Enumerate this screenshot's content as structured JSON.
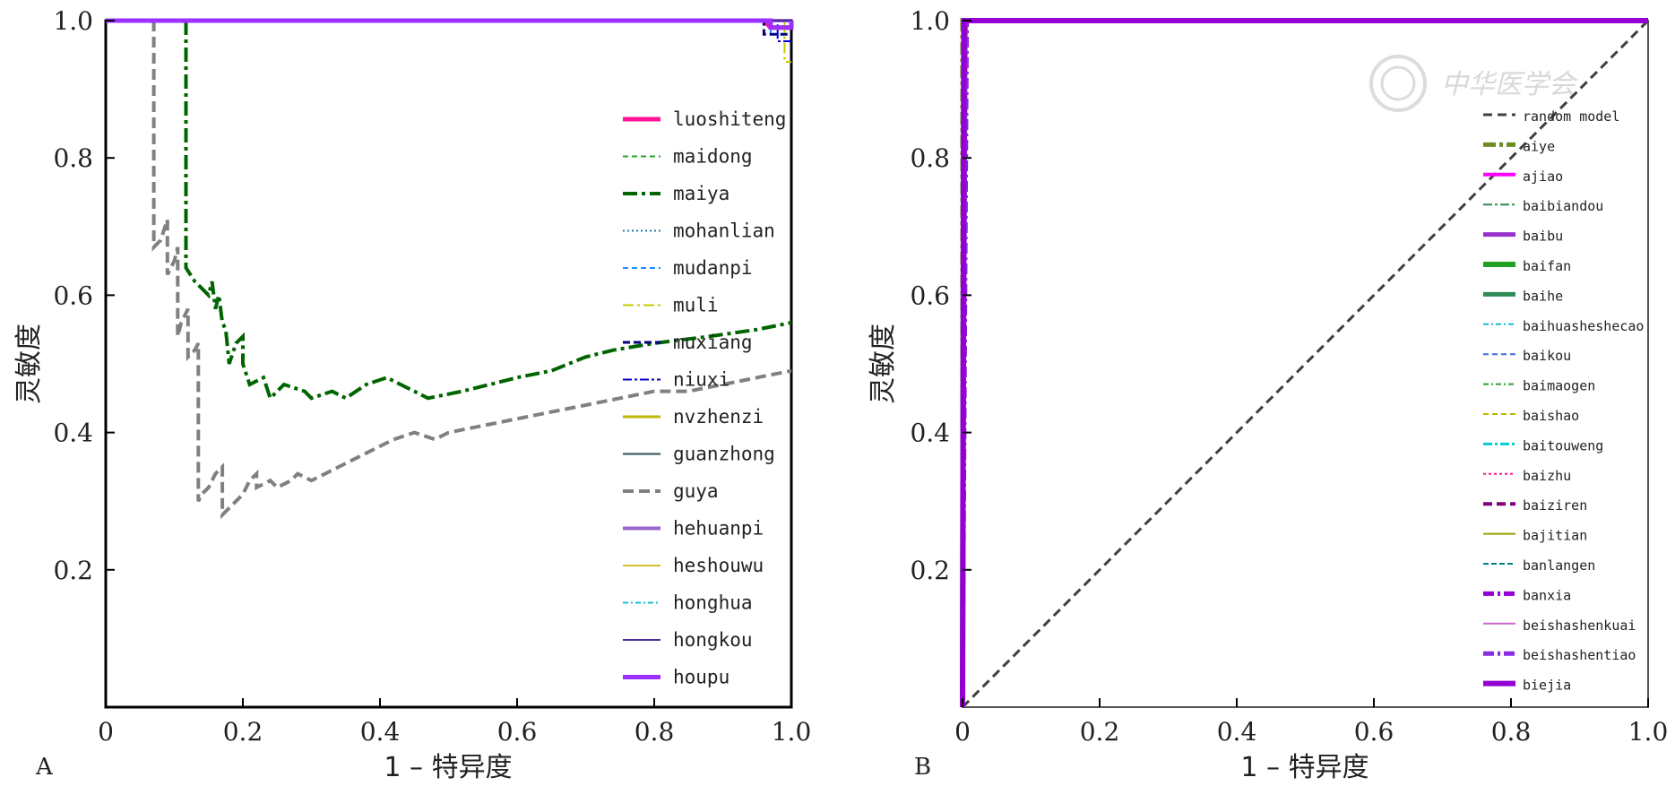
{
  "chart_data": [
    {
      "type": "line",
      "panel_label": "A",
      "xlabel": "1 – 特异度",
      "ylabel": "灵敏度",
      "xlim": [
        0,
        1
      ],
      "ylim": [
        0,
        1
      ],
      "x_ticks": [
        "0",
        "0.2",
        "0.4",
        "0.6",
        "0.8",
        "1.0"
      ],
      "y_ticks": [
        "0.2",
        "0.4",
        "0.6",
        "0.8",
        "1.0"
      ],
      "legend_position": "right",
      "series": [
        {
          "name": "luoshiteng",
          "color": "#ff1493",
          "dash": "",
          "width": 5,
          "points": [
            [
              0,
              1
            ],
            [
              0.96,
              1
            ],
            [
              0.97,
              0.99
            ],
            [
              1,
              0.99
            ],
            [
              1,
              1
            ]
          ]
        },
        {
          "name": "maidong",
          "color": "#2ca02c",
          "dash": "6 4",
          "width": 2,
          "points": [
            [
              0,
              1
            ],
            [
              1,
              1
            ]
          ]
        },
        {
          "name": "maiya",
          "color": "#006400",
          "dash": "16 5 4 5",
          "width": 4,
          "points": [
            [
              0.117,
              1
            ],
            [
              0.117,
              0.64
            ],
            [
              0.13,
              0.62
            ],
            [
              0.14,
              0.61
            ],
            [
              0.15,
              0.6
            ],
            [
              0.155,
              0.62
            ],
            [
              0.16,
              0.58
            ],
            [
              0.165,
              0.6
            ],
            [
              0.17,
              0.56
            ],
            [
              0.175,
              0.55
            ],
            [
              0.18,
              0.5
            ],
            [
              0.19,
              0.53
            ],
            [
              0.2,
              0.54
            ],
            [
              0.2,
              0.5
            ],
            [
              0.21,
              0.47
            ],
            [
              0.23,
              0.48
            ],
            [
              0.24,
              0.45
            ],
            [
              0.26,
              0.47
            ],
            [
              0.29,
              0.46
            ],
            [
              0.3,
              0.45
            ],
            [
              0.33,
              0.46
            ],
            [
              0.35,
              0.45
            ],
            [
              0.38,
              0.47
            ],
            [
              0.41,
              0.48
            ],
            [
              0.43,
              0.47
            ],
            [
              0.45,
              0.46
            ],
            [
              0.47,
              0.45
            ],
            [
              0.52,
              0.46
            ],
            [
              0.56,
              0.47
            ],
            [
              0.6,
              0.48
            ],
            [
              0.65,
              0.49
            ],
            [
              0.7,
              0.51
            ],
            [
              0.74,
              0.52
            ],
            [
              0.8,
              0.53
            ],
            [
              0.88,
              0.54
            ],
            [
              0.95,
              0.55
            ],
            [
              1,
              0.56
            ]
          ]
        },
        {
          "name": "mohanlian",
          "color": "#1f77b4",
          "dash": "2 3",
          "width": 2,
          "points": [
            [
              0,
              1
            ],
            [
              1,
              1
            ]
          ]
        },
        {
          "name": "mudanpi",
          "color": "#1e90ff",
          "dash": "6 4",
          "width": 2,
          "points": [
            [
              0,
              1
            ],
            [
              0.97,
              1
            ],
            [
              0.97,
              0.98
            ],
            [
              1,
              0.98
            ]
          ]
        },
        {
          "name": "muli",
          "color": "#c8c800",
          "dash": "12 4 3 4",
          "width": 2,
          "points": [
            [
              0,
              1
            ],
            [
              0.99,
              1
            ],
            [
              0.99,
              0.94
            ],
            [
              1,
              0.94
            ]
          ]
        },
        {
          "name": "muxiang",
          "color": "#000080",
          "dash": "8 4",
          "width": 3,
          "points": [
            [
              0,
              1
            ],
            [
              0.96,
              1
            ],
            [
              0.96,
              0.98
            ],
            [
              1,
              0.98
            ]
          ]
        },
        {
          "name": "niuxi",
          "color": "#0000cd",
          "dash": "10 3 3 3",
          "width": 2,
          "points": [
            [
              0,
              1
            ],
            [
              0.98,
              1
            ],
            [
              0.98,
              0.97
            ],
            [
              1,
              0.97
            ]
          ]
        },
        {
          "name": "nvzhenzi",
          "color": "#bdb700",
          "dash": "",
          "width": 3,
          "points": [
            [
              0,
              1
            ],
            [
              1,
              1
            ]
          ]
        },
        {
          "name": "guanzhong",
          "color": "#2f4f4f",
          "dash": "",
          "width": 2,
          "points": [
            [
              0,
              1
            ],
            [
              1,
              1
            ]
          ]
        },
        {
          "name": "guya",
          "color": "#808080",
          "dash": "12 6",
          "width": 4,
          "points": [
            [
              0.07,
              1
            ],
            [
              0.07,
              0.67
            ],
            [
              0.08,
              0.68
            ],
            [
              0.09,
              0.71
            ],
            [
              0.09,
              0.63
            ],
            [
              0.1,
              0.65
            ],
            [
              0.105,
              0.67
            ],
            [
              0.105,
              0.54
            ],
            [
              0.11,
              0.56
            ],
            [
              0.12,
              0.58
            ],
            [
              0.12,
              0.51
            ],
            [
              0.13,
              0.52
            ],
            [
              0.135,
              0.53
            ],
            [
              0.135,
              0.3
            ],
            [
              0.14,
              0.31
            ],
            [
              0.15,
              0.32
            ],
            [
              0.16,
              0.34
            ],
            [
              0.17,
              0.35
            ],
            [
              0.17,
              0.28
            ],
            [
              0.18,
              0.29
            ],
            [
              0.19,
              0.3
            ],
            [
              0.2,
              0.31
            ],
            [
              0.21,
              0.33
            ],
            [
              0.22,
              0.34
            ],
            [
              0.22,
              0.32
            ],
            [
              0.24,
              0.33
            ],
            [
              0.25,
              0.32
            ],
            [
              0.27,
              0.33
            ],
            [
              0.28,
              0.34
            ],
            [
              0.3,
              0.33
            ],
            [
              0.32,
              0.34
            ],
            [
              0.34,
              0.35
            ],
            [
              0.36,
              0.36
            ],
            [
              0.38,
              0.37
            ],
            [
              0.4,
              0.38
            ],
            [
              0.42,
              0.39
            ],
            [
              0.45,
              0.4
            ],
            [
              0.48,
              0.39
            ],
            [
              0.5,
              0.4
            ],
            [
              0.55,
              0.41
            ],
            [
              0.6,
              0.42
            ],
            [
              0.65,
              0.43
            ],
            [
              0.7,
              0.44
            ],
            [
              0.75,
              0.45
            ],
            [
              0.8,
              0.46
            ],
            [
              0.85,
              0.46
            ],
            [
              0.9,
              0.47
            ],
            [
              0.95,
              0.48
            ],
            [
              1,
              0.49
            ]
          ]
        },
        {
          "name": "hehuanpi",
          "color": "#9966cc",
          "dash": "",
          "width": 4,
          "points": [
            [
              0,
              1
            ],
            [
              1,
              1
            ]
          ]
        },
        {
          "name": "heshouwu",
          "color": "#d4c030",
          "dash": "",
          "width": 2,
          "points": [
            [
              0,
              1
            ],
            [
              1,
              1
            ]
          ]
        },
        {
          "name": "honghua",
          "color": "#17becf",
          "dash": "6 3 2 3",
          "width": 2,
          "points": [
            [
              0,
              1
            ],
            [
              1,
              1
            ]
          ]
        },
        {
          "name": "hongkou",
          "color": "#4b2c9a",
          "dash": "",
          "width": 2,
          "points": [
            [
              0,
              1
            ],
            [
              1,
              1
            ]
          ]
        },
        {
          "name": "houpu",
          "color": "#9b30ff",
          "dash": "",
          "width": 5,
          "points": [
            [
              0,
              1
            ],
            [
              0.97,
              1
            ],
            [
              0.97,
              0.99
            ],
            [
              1,
              0.99
            ],
            [
              1,
              1
            ]
          ]
        }
      ]
    },
    {
      "type": "line",
      "panel_label": "B",
      "xlabel": "1 – 特异度",
      "ylabel": "灵敏度",
      "xlim": [
        0,
        1
      ],
      "ylim": [
        0,
        1
      ],
      "x_ticks": [
        "0",
        "0.2",
        "0.4",
        "0.6",
        "0.8",
        "1.0"
      ],
      "y_ticks": [
        "0.2",
        "0.4",
        "0.6",
        "0.8",
        "1.0"
      ],
      "legend_position": "right",
      "series": [
        {
          "name": "random model",
          "color": "#404040",
          "dash": "10 6",
          "width": 3,
          "points": [
            [
              0,
              0
            ],
            [
              1,
              1
            ]
          ]
        },
        {
          "name": "aiye",
          "color": "#6b8e23",
          "dash": "14 4 4 4",
          "width": 5,
          "points": [
            [
              0,
              0
            ],
            [
              0,
              1
            ],
            [
              1,
              1
            ]
          ]
        },
        {
          "name": "ajiao",
          "color": "#ff00ff",
          "dash": "",
          "width": 4,
          "points": [
            [
              0,
              0
            ],
            [
              0.005,
              1
            ],
            [
              1,
              1
            ]
          ]
        },
        {
          "name": "baibiandou",
          "color": "#2e8b57",
          "dash": "10 3 3 3",
          "width": 2,
          "points": [
            [
              0,
              0
            ],
            [
              0.003,
              1
            ],
            [
              1,
              1
            ]
          ]
        },
        {
          "name": "baibu",
          "color": "#9932cc",
          "dash": "",
          "width": 5,
          "points": [
            [
              0,
              0
            ],
            [
              0.004,
              1
            ],
            [
              1,
              1
            ]
          ]
        },
        {
          "name": "baifan",
          "color": "#22a022",
          "dash": "",
          "width": 6,
          "points": [
            [
              0,
              0
            ],
            [
              0.002,
              1
            ],
            [
              1,
              1
            ]
          ]
        },
        {
          "name": "baihe",
          "color": "#2e8b57",
          "dash": "",
          "width": 5,
          "points": [
            [
              0,
              0
            ],
            [
              0.003,
              1
            ],
            [
              1,
              1
            ]
          ]
        },
        {
          "name": "baihuasheshecao",
          "color": "#17becf",
          "dash": "6 3 2 3",
          "width": 1,
          "points": [
            [
              0,
              0
            ],
            [
              0.002,
              1
            ],
            [
              1,
              1
            ]
          ]
        },
        {
          "name": "baikou",
          "color": "#4169e1",
          "dash": "6 4",
          "width": 2,
          "points": [
            [
              0,
              0
            ],
            [
              0.003,
              1
            ],
            [
              1,
              1
            ]
          ]
        },
        {
          "name": "baimaogen",
          "color": "#2ca02c",
          "dash": "6 3 2 3",
          "width": 1,
          "points": [
            [
              0,
              0
            ],
            [
              0.004,
              1
            ],
            [
              1,
              1
            ]
          ]
        },
        {
          "name": "baishao",
          "color": "#bdb700",
          "dash": "6 4",
          "width": 2,
          "points": [
            [
              0,
              0
            ],
            [
              0.004,
              1
            ],
            [
              1,
              1
            ]
          ]
        },
        {
          "name": "baitouweng",
          "color": "#00ced1",
          "dash": "10 3 3 3",
          "width": 3,
          "points": [
            [
              0,
              0
            ],
            [
              0.003,
              1
            ],
            [
              1,
              1
            ]
          ]
        },
        {
          "name": "baizhu",
          "color": "#ff1493",
          "dash": "3 3",
          "width": 1,
          "points": [
            [
              0,
              0
            ],
            [
              0.005,
              1
            ],
            [
              1,
              1
            ]
          ]
        },
        {
          "name": "baiziren",
          "color": "#800080",
          "dash": "10 5",
          "width": 4,
          "points": [
            [
              0,
              0
            ],
            [
              0.004,
              1
            ],
            [
              1,
              1
            ]
          ]
        },
        {
          "name": "bajitian",
          "color": "#a0a000",
          "dash": "",
          "width": 2,
          "points": [
            [
              0,
              0
            ],
            [
              0.002,
              1
            ],
            [
              1,
              1
            ]
          ]
        },
        {
          "name": "banlangen",
          "color": "#008080",
          "dash": "6 3",
          "width": 2,
          "points": [
            [
              0,
              0
            ],
            [
              0.003,
              1
            ],
            [
              1,
              1
            ]
          ]
        },
        {
          "name": "banxia",
          "color": "#9400d3",
          "dash": "12 4 3 4",
          "width": 5,
          "points": [
            [
              0,
              0
            ],
            [
              0.006,
              1
            ],
            [
              1,
              1
            ]
          ]
        },
        {
          "name": "beishashenkuai",
          "color": "#cc66cc",
          "dash": "",
          "width": 1,
          "points": [
            [
              0,
              0
            ],
            [
              0.003,
              1
            ],
            [
              1,
              1
            ]
          ]
        },
        {
          "name": "beishashentiao",
          "color": "#8a2be2",
          "dash": "12 4 3 4",
          "width": 5,
          "points": [
            [
              0,
              0
            ],
            [
              0.005,
              1
            ],
            [
              1,
              1
            ]
          ]
        },
        {
          "name": "biejia",
          "color": "#9400d3",
          "dash": "",
          "width": 6,
          "points": [
            [
              0,
              0
            ],
            [
              0.002,
              1
            ],
            [
              1,
              1
            ]
          ]
        }
      ]
    }
  ],
  "watermark": {
    "text": "中华医学会"
  }
}
